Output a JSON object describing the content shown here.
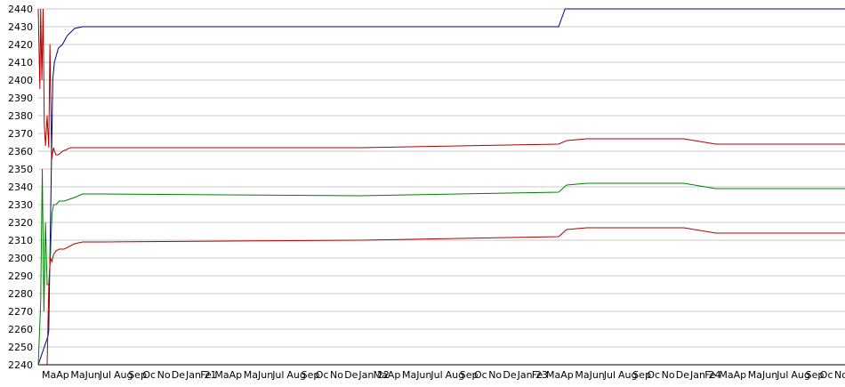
{
  "chart_data": {
    "type": "line",
    "title": "",
    "xlabel": "",
    "ylabel": "",
    "ylim": [
      2240,
      2440
    ],
    "y_ticks": [
      2440,
      2430,
      2420,
      2410,
      2400,
      2390,
      2380,
      2370,
      2360,
      2350,
      2340,
      2330,
      2320,
      2310,
      2300,
      2290,
      2280,
      2270,
      2260,
      2250,
      2240
    ],
    "grid": true,
    "legend": "none",
    "x_tick_labels": [
      "Ma",
      "Ap",
      "Ma",
      "Jun",
      "Jul",
      "Aug",
      "Sep",
      "Oc",
      "No",
      "De",
      "Jan 21",
      "Fe",
      "Ma",
      "Ap",
      "Ma",
      "Jun",
      "Jul",
      "Aug",
      "Sep",
      "Oc",
      "No",
      "De",
      "Jan 22",
      "Ma",
      "Ap",
      "Ma",
      "Jun",
      "Jul",
      "Aug",
      "Sep",
      "Oc",
      "No",
      "De",
      "Jan 23",
      "Fe",
      "Ma",
      "Ap",
      "Ma",
      "Jun",
      "Jul",
      "Aug",
      "Sep",
      "Oc",
      "No",
      "De",
      "Jan 24",
      "Fe",
      "Ma",
      "Ap",
      "Ma",
      "Jun",
      "Jul",
      "Aug",
      "Sep",
      "Oc",
      "No"
    ],
    "x_domain": [
      0,
      100
    ],
    "series": [
      {
        "color": "#000080",
        "x": [
          0,
          1.2,
          1.3,
          1.8,
          2.0,
          2.5,
          3.0,
          3.6,
          4.5,
          5.5,
          64.5,
          65.3,
          100
        ],
        "values": [
          2240,
          2256,
          2259,
          2400,
          2410,
          2418,
          2420,
          2425,
          2429,
          2430,
          2430,
          2440,
          2440
        ]
      },
      {
        "color": "#b00000",
        "x": [
          0,
          0.2,
          0.3,
          0.45,
          0.6,
          0.75,
          0.9,
          1.1,
          1.3,
          1.45,
          1.65,
          1.8,
          1.9,
          2.0,
          2.2,
          2.5,
          3.0,
          4.0,
          5.5,
          8.0,
          40.0,
          64.5,
          65.5,
          68.0,
          80.0,
          84.0,
          100
        ],
        "values": [
          2440,
          2395,
          2440,
          2400,
          2440,
          2375,
          2363,
          2380,
          2362,
          2420,
          2355,
          2360,
          2362,
          2360,
          2358,
          2358,
          2360,
          2362,
          2362,
          2362,
          2362,
          2364,
          2366,
          2367,
          2367,
          2364,
          2364
        ]
      },
      {
        "color": "#008000",
        "x": [
          0,
          0.3,
          0.5,
          0.7,
          0.9,
          1.1,
          1.3,
          1.5,
          1.7,
          1.9,
          2.2,
          2.6,
          3.2,
          4.5,
          5.5,
          8.0,
          40.0,
          64.5,
          65.5,
          68.0,
          80.0,
          84.0,
          100
        ],
        "values": [
          2240,
          2275,
          2350,
          2270,
          2320,
          2285,
          2285,
          2300,
          2325,
          2330,
          2330,
          2332,
          2332,
          2334,
          2336,
          2336,
          2335,
          2337,
          2341,
          2342,
          2342,
          2339,
          2339
        ]
      },
      {
        "color": "#b00000",
        "x": [
          0,
          0.3,
          0.5,
          0.7,
          0.9,
          1.1,
          1.3,
          1.5,
          1.7,
          1.9,
          2.2,
          2.6,
          3.2,
          4.5,
          5.5,
          8.0,
          40.0,
          64.5,
          65.5,
          68.0,
          80.0,
          84.0,
          100
        ],
        "values": [
          2240,
          2240,
          2240,
          2240,
          2240,
          2240,
          2283,
          2300,
          2298,
          2302,
          2304,
          2305,
          2305,
          2308,
          2309,
          2309,
          2310,
          2312,
          2316,
          2317,
          2317,
          2314,
          2314
        ]
      }
    ]
  }
}
